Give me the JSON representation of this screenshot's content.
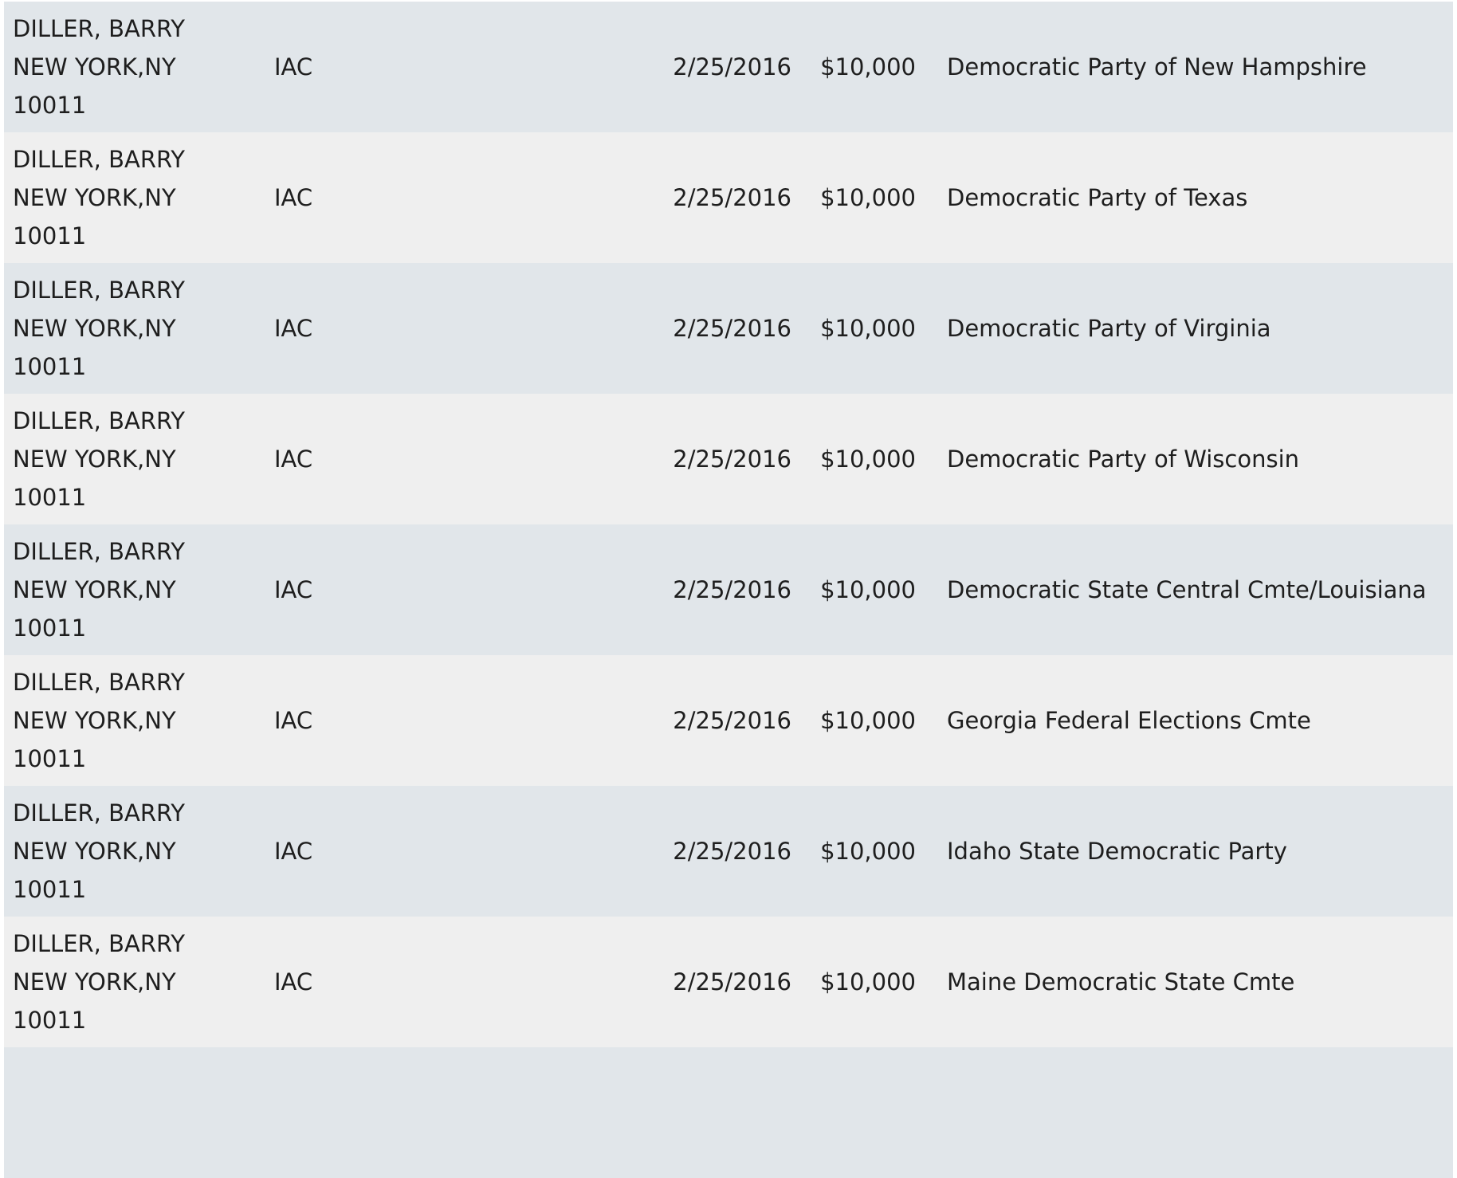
{
  "rows": [
    {
      "name": "DILLER, BARRY",
      "city": "NEW YORK,NY",
      "zip": "10011",
      "employer": "IAC",
      "date": "2/25/2016",
      "amount": "$10,000",
      "recipient": "Democratic Party of New Hampshire"
    },
    {
      "name": "DILLER, BARRY",
      "city": "NEW YORK,NY",
      "zip": "10011",
      "employer": "IAC",
      "date": "2/25/2016",
      "amount": "$10,000",
      "recipient": "Democratic Party of Texas"
    },
    {
      "name": "DILLER, BARRY",
      "city": "NEW YORK,NY",
      "zip": "10011",
      "employer": "IAC",
      "date": "2/25/2016",
      "amount": "$10,000",
      "recipient": "Democratic Party of Virginia"
    },
    {
      "name": "DILLER, BARRY",
      "city": "NEW YORK,NY",
      "zip": "10011",
      "employer": "IAC",
      "date": "2/25/2016",
      "amount": "$10,000",
      "recipient": "Democratic Party of Wisconsin"
    },
    {
      "name": "DILLER, BARRY",
      "city": "NEW YORK,NY",
      "zip": "10011",
      "employer": "IAC",
      "date": "2/25/2016",
      "amount": "$10,000",
      "recipient": "Democratic State Central Cmte/Louisiana"
    },
    {
      "name": "DILLER, BARRY",
      "city": "NEW YORK,NY",
      "zip": "10011",
      "employer": "IAC",
      "date": "2/25/2016",
      "amount": "$10,000",
      "recipient": "Georgia Federal Elections Cmte"
    },
    {
      "name": "DILLER, BARRY",
      "city": "NEW YORK,NY",
      "zip": "10011",
      "employer": "IAC",
      "date": "2/25/2016",
      "amount": "$10,000",
      "recipient": "Idaho State Democratic Party"
    },
    {
      "name": "DILLER, BARRY",
      "city": "NEW YORK,NY",
      "zip": "10011",
      "employer": "IAC",
      "date": "2/25/2016",
      "amount": "$10,000",
      "recipient": "Maine Democratic State Cmte"
    }
  ],
  "colors": {
    "row_odd": "#e1e6ea",
    "row_even": "#efefef",
    "text": "#1e1e1e"
  }
}
